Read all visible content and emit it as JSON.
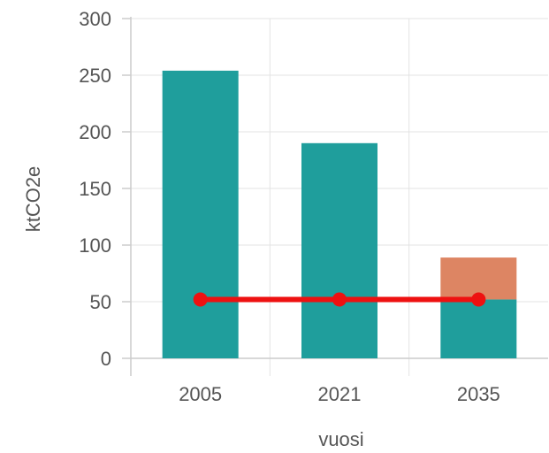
{
  "chart_data": {
    "type": "bar",
    "stacked": true,
    "categories": [
      "2005",
      "2021",
      "2035"
    ],
    "series": [
      {
        "values": [
          254,
          190,
          52
        ],
        "color": "#1f9e9c"
      },
      {
        "values": [
          0,
          0,
          37
        ],
        "color": "#dd8563"
      }
    ],
    "line": {
      "values": [
        52,
        52,
        52
      ],
      "color": "#ee1111"
    },
    "xlabel": "vuosi",
    "ylabel": "ktCO2e",
    "ylim": [
      0,
      300
    ],
    "yticks": [
      0,
      50,
      100,
      150,
      200,
      250,
      300
    ],
    "grid": true
  }
}
